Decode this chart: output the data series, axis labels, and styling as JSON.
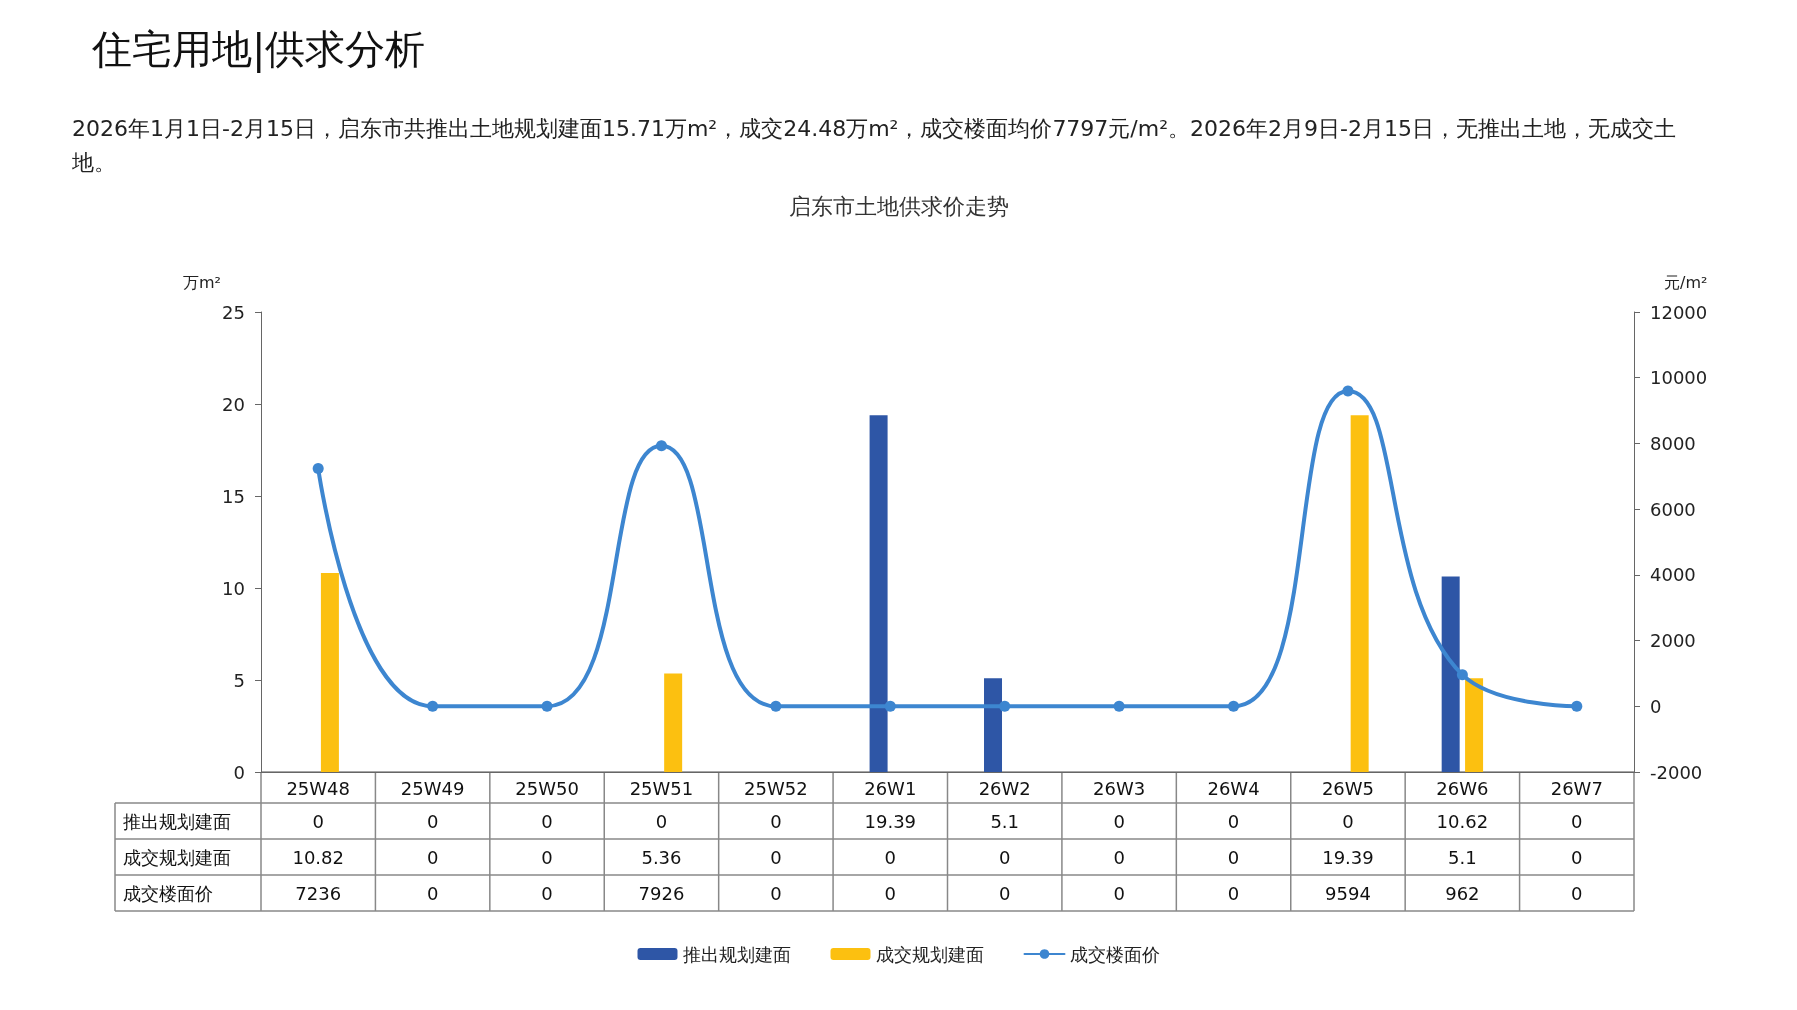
{
  "chart_data": {
    "type": "bar",
    "title": "启东市土地供求价走势",
    "annotations": [
      "住宅用地|供求分析",
      "2026年1月1日-2月15日，启东市共推出土地规划建面15.71万m²，成交24.48万m²，成交楼面均价7797元/m²。2026年2月9日-2月15日，无推出土地，无成交土地。"
    ],
    "ylabel": "万m²",
    "y2label": "元/m²",
    "categories": [
      "25W48",
      "25W49",
      "25W50",
      "25W51",
      "25W52",
      "26W1",
      "26W2",
      "26W3",
      "26W4",
      "26W5",
      "26W6",
      "26W7"
    ],
    "series": [
      {
        "name": "推出规划建面",
        "color": "#2e56a6",
        "values": [
          0,
          0,
          0,
          0,
          0,
          19.39,
          5.1,
          0,
          0,
          0,
          10.62,
          0
        ]
      },
      {
        "name": "成交规划建面",
        "color": "#fcc010",
        "values": [
          10.82,
          0,
          0,
          5.36,
          0,
          0,
          0,
          0,
          0,
          19.39,
          5.1,
          0
        ]
      },
      {
        "name": "成交楼面价",
        "type": "line",
        "axis": "y2",
        "color": "#3d86d0",
        "values": [
          7236,
          0,
          0,
          7926,
          0,
          0,
          0,
          0,
          0,
          9594,
          962,
          0
        ]
      }
    ],
    "ylim": [
      0,
      25
    ],
    "yticks": [
      0,
      5,
      10,
      15,
      20,
      25
    ],
    "y2lim": [
      -2000,
      12000
    ],
    "y2ticks": [
      -2000,
      0,
      2000,
      4000,
      6000,
      8000,
      10000,
      12000
    ],
    "data_labels": true,
    "grid": false,
    "legend": "bottom",
    "marker": "circle",
    "line_style": "solid"
  }
}
